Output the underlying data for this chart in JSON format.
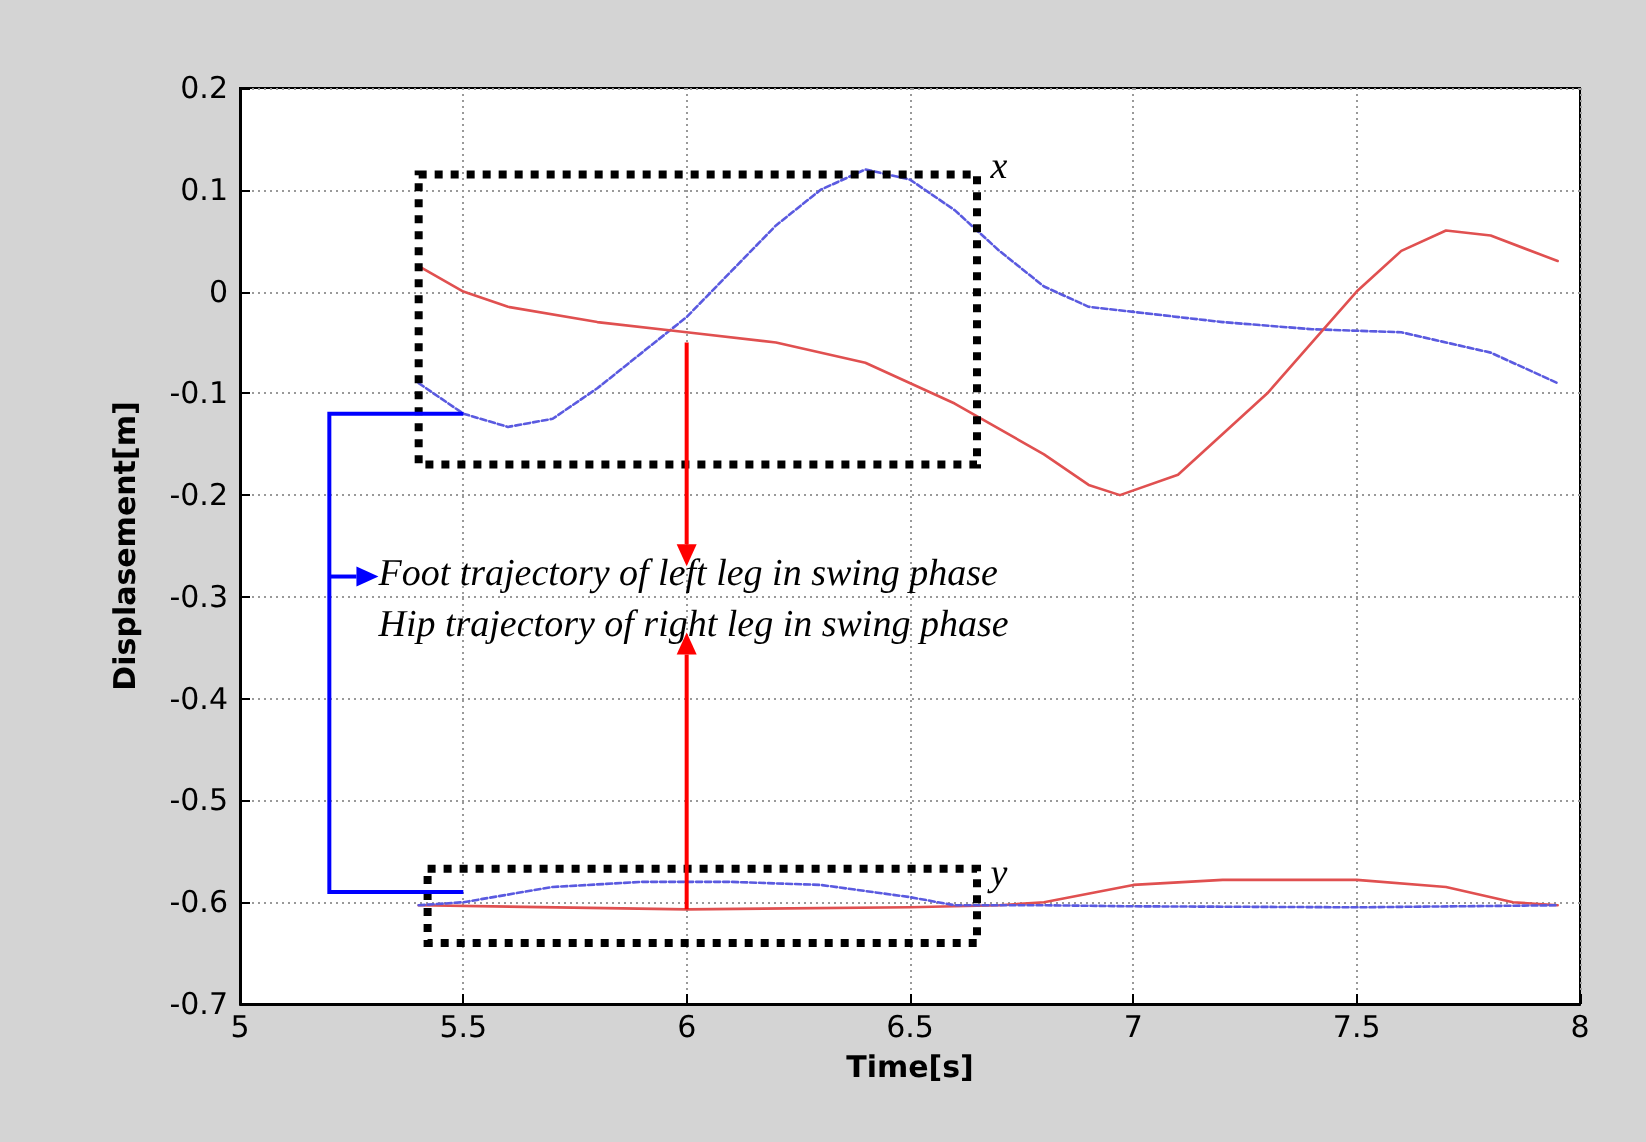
{
  "chart_data": {
    "type": "line",
    "xlabel": "Time[s]",
    "ylabel": "Displasement[m]",
    "xlim": [
      5,
      8
    ],
    "xticks": [
      5,
      5.5,
      6,
      6.5,
      7,
      7.5,
      8
    ],
    "ylim": [
      -0.7,
      0.2
    ],
    "yticks": [
      -0.7,
      -0.6,
      -0.5,
      -0.4,
      -0.3,
      -0.2,
      -0.1,
      0,
      0.1,
      0.2
    ],
    "grid": true,
    "legend": false,
    "marker": "none",
    "series": [
      {
        "color": "#5a5ae0",
        "line_style": "dotted",
        "x": [
          5.4,
          5.5,
          5.6,
          5.7,
          5.8,
          5.9,
          6.0,
          6.1,
          6.2,
          6.3,
          6.4,
          6.5,
          6.6,
          6.7,
          6.8,
          6.9,
          7.0,
          7.2,
          7.4,
          7.6,
          7.8,
          7.95
        ],
        "values": [
          -0.09,
          -0.12,
          -0.133,
          -0.125,
          -0.095,
          -0.06,
          -0.025,
          0.02,
          0.065,
          0.1,
          0.12,
          0.11,
          0.08,
          0.04,
          0.005,
          -0.015,
          -0.02,
          -0.03,
          -0.037,
          -0.04,
          -0.06,
          -0.09
        ]
      },
      {
        "color": "#e05050",
        "line_style": "solid",
        "x": [
          5.4,
          5.5,
          5.6,
          5.8,
          6.0,
          6.2,
          6.4,
          6.6,
          6.8,
          6.9,
          6.97,
          7.1,
          7.3,
          7.4,
          7.5,
          7.6,
          7.7,
          7.8,
          7.95
        ],
        "values": [
          0.025,
          0.0,
          -0.015,
          -0.03,
          -0.04,
          -0.05,
          -0.07,
          -0.11,
          -0.16,
          -0.19,
          -0.2,
          -0.18,
          -0.1,
          -0.05,
          0.0,
          0.04,
          0.06,
          0.055,
          0.03
        ]
      },
      {
        "color": "#e05050",
        "line_style": "solid",
        "x": [
          5.4,
          6.0,
          6.5,
          6.7,
          6.8,
          7.0,
          7.2,
          7.5,
          7.7,
          7.85,
          7.95
        ],
        "values": [
          -0.603,
          -0.607,
          -0.605,
          -0.603,
          -0.6,
          -0.583,
          -0.578,
          -0.578,
          -0.585,
          -0.6,
          -0.603
        ]
      },
      {
        "color": "#5a5ae0",
        "line_style": "dotted",
        "x": [
          5.4,
          5.5,
          5.7,
          5.9,
          6.1,
          6.3,
          6.5,
          6.6,
          6.8,
          7.0,
          7.5,
          7.95
        ],
        "values": [
          -0.603,
          -0.6,
          -0.585,
          -0.58,
          -0.58,
          -0.583,
          -0.595,
          -0.603,
          -0.603,
          -0.604,
          -0.605,
          -0.603
        ]
      }
    ],
    "annotations": [
      "x",
      "y",
      "Foot trajectory of left leg in swing phase",
      {
        "text": "Hip trajectory of right leg in swing phase",
        "x": 6.0,
        "y": -0.607
      }
    ]
  }
}
